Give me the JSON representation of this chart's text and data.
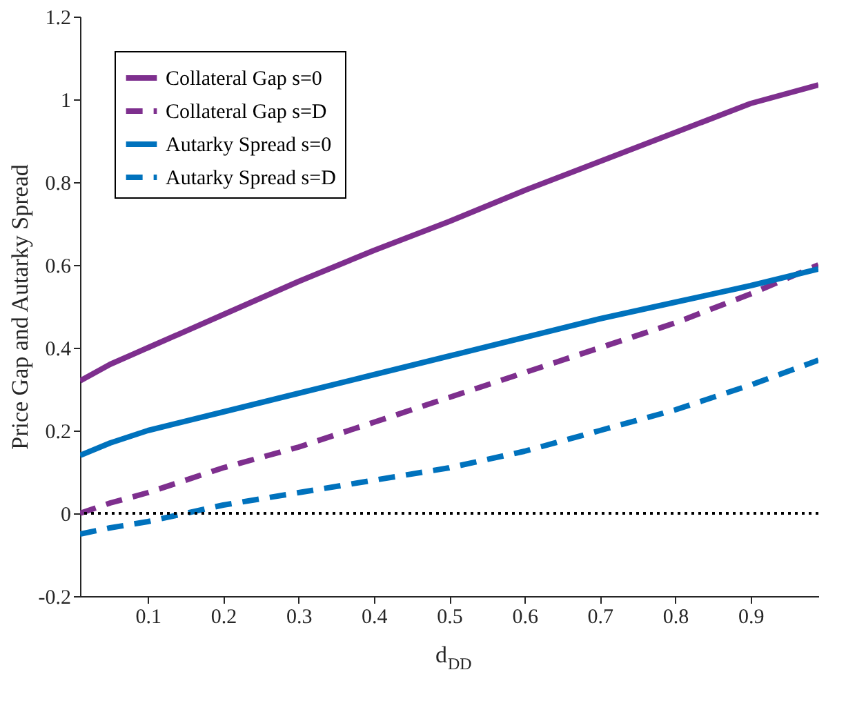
{
  "chart_data": {
    "type": "line",
    "xlabel": "d$_{DD}$",
    "ylabel": "Price Gap and Autarky Spread",
    "xlim": [
      0.01,
      0.99
    ],
    "xticks": [
      0.1,
      0.2,
      0.3,
      0.4,
      0.5,
      0.6,
      0.7,
      0.8,
      0.9
    ],
    "ylim": [
      -0.2,
      1.2
    ],
    "yticks": [
      -0.2,
      0,
      0.2,
      0.4,
      0.6,
      0.8,
      1,
      1.2
    ],
    "x": [
      0.01,
      0.05,
      0.1,
      0.2,
      0.3,
      0.4,
      0.5,
      0.6,
      0.7,
      0.8,
      0.9,
      0.99
    ],
    "series": [
      {
        "name": "Collateral Gap s=0",
        "color": "#7e2f8e",
        "line_style": "solid",
        "values": [
          0.32,
          0.36,
          0.4,
          0.48,
          0.56,
          0.635,
          0.705,
          0.78,
          0.85,
          0.92,
          0.99,
          1.035
        ]
      },
      {
        "name": "Collateral Gap s=D",
        "color": "#7e2f8e",
        "line_style": "dashed",
        "values": [
          0.0,
          0.025,
          0.05,
          0.11,
          0.16,
          0.22,
          0.28,
          0.34,
          0.4,
          0.46,
          0.53,
          0.6
        ]
      },
      {
        "name": "Autarky Spread s=0",
        "color": "#0072bd",
        "line_style": "solid",
        "values": [
          0.14,
          0.17,
          0.2,
          0.245,
          0.29,
          0.335,
          0.38,
          0.425,
          0.47,
          0.51,
          0.55,
          0.59
        ]
      },
      {
        "name": "Autarky Spread s=D",
        "color": "#0072bd",
        "line_style": "dashed",
        "values": [
          -0.05,
          -0.035,
          -0.02,
          0.02,
          0.05,
          0.08,
          0.11,
          0.15,
          0.2,
          0.25,
          0.31,
          0.37
        ]
      }
    ],
    "ref_lines": [
      {
        "axis": "y",
        "value": 0,
        "color": "#000000",
        "line_style": "dotted"
      }
    ],
    "legend": "top left",
    "grid": false
  }
}
